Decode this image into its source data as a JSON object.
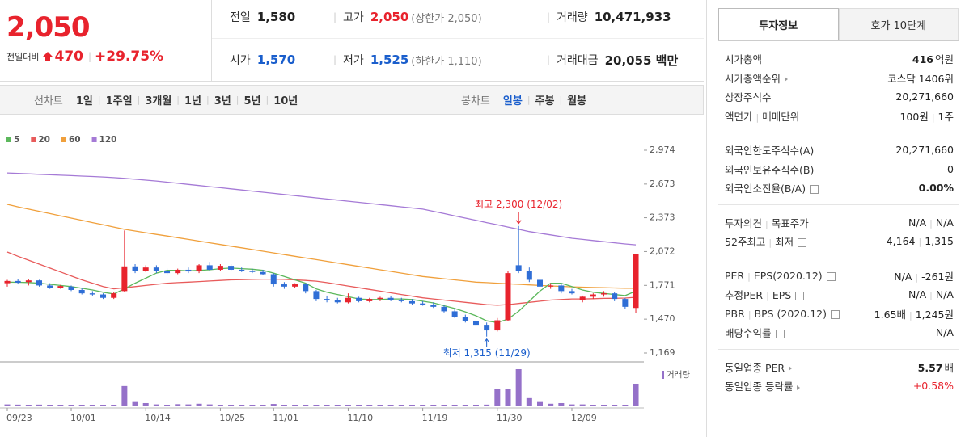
{
  "header": {
    "price": "2,050",
    "change_label": "전일대비",
    "change": "470",
    "change_rate": "+29.75%",
    "stats": [
      [
        {
          "label": "전일",
          "value": "1,580"
        },
        {
          "label": "고가",
          "value": "2,050",
          "note": "(상한가 2,050)",
          "color": "red"
        },
        {
          "label": "거래량",
          "value": "10,471,933"
        }
      ],
      [
        {
          "label": "시가",
          "value": "1,570",
          "color": "blue"
        },
        {
          "label": "저가",
          "value": "1,525",
          "note": "(하한가 1,110)",
          "color": "blue"
        },
        {
          "label": "거래대금",
          "value": "20,055 백만"
        }
      ]
    ]
  },
  "toolbar": {
    "line_label": "선차트",
    "line_periods": [
      "1일",
      "1주일",
      "3개월",
      "1년",
      "3년",
      "5년",
      "10년"
    ],
    "candle_label": "봉차트",
    "candle_periods": [
      "일봉",
      "주봉",
      "월봉"
    ],
    "active": "일봉"
  },
  "info": {
    "tabs": [
      "투자정보",
      "호가 10단계"
    ],
    "active_tab": "투자정보",
    "groups": [
      [
        {
          "labels": [
            "시가총액"
          ],
          "values": [
            "416"
          ],
          "unit": "억원",
          "bold": true
        },
        {
          "labels": [
            "시가총액순위"
          ],
          "icon": "arrow",
          "values": [
            "코스닥 1406위"
          ]
        },
        {
          "labels": [
            "상장주식수"
          ],
          "values": [
            "20,271,660"
          ]
        },
        {
          "labels": [
            "액면가",
            "매매단위"
          ],
          "values": [
            "100원",
            "1주"
          ]
        }
      ],
      [
        {
          "labels": [
            "외국인한도주식수(A)"
          ],
          "values": [
            "20,271,660"
          ]
        },
        {
          "labels": [
            "외국인보유주식수(B)"
          ],
          "values": [
            "0"
          ]
        },
        {
          "labels": [
            "외국인소진율(B/A)"
          ],
          "icon": "help",
          "values": [
            "0.00%"
          ],
          "bold": true
        }
      ],
      [
        {
          "labels": [
            "투자의견",
            "목표주가"
          ],
          "values": [
            "N/A",
            "N/A"
          ]
        },
        {
          "labels": [
            "52주최고",
            "최저"
          ],
          "icon": "help",
          "values": [
            "4,164",
            "1,315"
          ]
        }
      ],
      [
        {
          "labels": [
            "PER",
            "EPS(2020.12)"
          ],
          "icon": "help",
          "values": [
            "N/A",
            "-261원"
          ]
        },
        {
          "labels": [
            "추정PER",
            "EPS"
          ],
          "icon": "help",
          "values": [
            "N/A",
            "N/A"
          ]
        },
        {
          "labels": [
            "PBR",
            "BPS (2020.12)"
          ],
          "icon": "help",
          "values": [
            "1.65배",
            "1,245원"
          ]
        },
        {
          "labels": [
            "배당수익률"
          ],
          "icon": "help",
          "values": [
            "N/A"
          ]
        }
      ],
      [
        {
          "labels": [
            "동일업종 PER"
          ],
          "icon": "arrow",
          "values": [
            "5.57"
          ],
          "unit": "배",
          "bold": true
        },
        {
          "labels": [
            "동일업종 등락률"
          ],
          "icon": "arrow",
          "values": [
            "+0.58%"
          ],
          "color": "red"
        }
      ]
    ]
  },
  "chart_data": {
    "type": "candlestick",
    "categories": [
      "09/23",
      null,
      null,
      null,
      null,
      null,
      "10/01",
      null,
      null,
      null,
      null,
      null,
      null,
      "10/14",
      null,
      null,
      null,
      null,
      null,
      null,
      "10/25",
      null,
      null,
      null,
      null,
      "11/01",
      null,
      null,
      null,
      null,
      null,
      null,
      "11/10",
      null,
      null,
      null,
      null,
      null,
      null,
      "11/19",
      null,
      null,
      null,
      null,
      null,
      null,
      "11/30",
      null,
      null,
      null,
      null,
      null,
      null,
      "12/09",
      null,
      null,
      null,
      null,
      null,
      null
    ],
    "open": [
      1790,
      1810,
      1800,
      1815,
      1770,
      1750,
      1760,
      1730,
      1700,
      1690,
      1660,
      1720,
      1940,
      1900,
      1930,
      1900,
      1880,
      1910,
      1895,
      1950,
      1910,
      1945,
      1910,
      1900,
      1890,
      1870,
      1780,
      1760,
      1780,
      1720,
      1650,
      1640,
      1620,
      1660,
      1630,
      1650,
      1660,
      1640,
      1630,
      1610,
      1600,
      1580,
      1540,
      1490,
      1450,
      1420,
      1370,
      1460,
      1950,
      1900,
      1820,
      1760,
      1770,
      1720,
      1640,
      1670,
      1690,
      1700,
      1650,
      1570
    ],
    "high": [
      1820,
      1830,
      1830,
      1820,
      1790,
      1775,
      1770,
      1745,
      1720,
      1700,
      1710,
      2260,
      1960,
      1950,
      1950,
      1920,
      1920,
      1930,
      1960,
      1980,
      1960,
      1960,
      1930,
      1920,
      1910,
      1880,
      1800,
      1790,
      1790,
      1730,
      1680,
      1660,
      1700,
      1670,
      1660,
      1670,
      1680,
      1660,
      1650,
      1630,
      1620,
      1600,
      1560,
      1510,
      1470,
      1440,
      1480,
      1900,
      2300,
      1930,
      1840,
      1790,
      1790,
      1740,
      1680,
      1700,
      1720,
      1710,
      1660,
      2050
    ],
    "low": [
      1760,
      1780,
      1770,
      1760,
      1740,
      1740,
      1720,
      1690,
      1680,
      1650,
      1650,
      1710,
      1880,
      1890,
      1880,
      1860,
      1870,
      1880,
      1880,
      1900,
      1900,
      1900,
      1890,
      1880,
      1860,
      1760,
      1740,
      1750,
      1700,
      1630,
      1620,
      1610,
      1610,
      1620,
      1620,
      1630,
      1630,
      1620,
      1600,
      1590,
      1570,
      1530,
      1480,
      1440,
      1400,
      1315,
      1360,
      1450,
      1880,
      1800,
      1740,
      1740,
      1700,
      1690,
      1620,
      1650,
      1670,
      1630,
      1560,
      1525
    ],
    "close": [
      1810,
      1795,
      1815,
      1770,
      1750,
      1765,
      1730,
      1700,
      1690,
      1660,
      1700,
      1940,
      1900,
      1930,
      1900,
      1880,
      1910,
      1895,
      1950,
      1910,
      1945,
      1910,
      1900,
      1890,
      1870,
      1780,
      1760,
      1780,
      1720,
      1650,
      1640,
      1620,
      1660,
      1630,
      1650,
      1660,
      1640,
      1630,
      1610,
      1600,
      1580,
      1540,
      1490,
      1450,
      1420,
      1370,
      1460,
      1880,
      1900,
      1820,
      1760,
      1770,
      1720,
      1700,
      1670,
      1690,
      1700,
      1650,
      1580,
      2050
    ],
    "up_color": "#e8232d",
    "down_color": "#2f6ed6",
    "series": [
      {
        "name": "5",
        "color": "#5cb85c",
        "values": [
          1800,
          1798,
          1796,
          1790,
          1780,
          1770,
          1760,
          1745,
          1730,
          1710,
          1695,
          1740,
          1790,
          1835,
          1880,
          1905,
          1905,
          1900,
          1905,
          1910,
          1920,
          1925,
          1920,
          1915,
          1905,
          1880,
          1850,
          1820,
          1790,
          1740,
          1710,
          1690,
          1670,
          1650,
          1645,
          1645,
          1650,
          1650,
          1645,
          1630,
          1615,
          1590,
          1565,
          1535,
          1500,
          1455,
          1440,
          1470,
          1540,
          1630,
          1720,
          1790,
          1790,
          1760,
          1730,
          1710,
          1700,
          1690,
          1680,
          1720
        ]
      },
      {
        "name": "20",
        "color": "#e85b5b",
        "values": [
          2068,
          2030,
          1995,
          1960,
          1925,
          1890,
          1855,
          1820,
          1790,
          1760,
          1740,
          1750,
          1760,
          1770,
          1780,
          1790,
          1795,
          1800,
          1805,
          1810,
          1815,
          1820,
          1822,
          1824,
          1826,
          1826,
          1824,
          1820,
          1815,
          1808,
          1795,
          1780,
          1765,
          1750,
          1735,
          1720,
          1705,
          1690,
          1675,
          1660,
          1650,
          1640,
          1630,
          1620,
          1610,
          1600,
          1595,
          1600,
          1610,
          1620,
          1630,
          1640,
          1645,
          1650,
          1650,
          1652,
          1655,
          1656,
          1658,
          1665
        ]
      },
      {
        "name": "60",
        "color": "#f0a03c",
        "values": [
          2492,
          2470,
          2450,
          2430,
          2410,
          2390,
          2370,
          2350,
          2330,
          2310,
          2290,
          2270,
          2255,
          2240,
          2225,
          2210,
          2195,
          2180,
          2165,
          2150,
          2135,
          2120,
          2105,
          2090,
          2075,
          2060,
          2045,
          2030,
          2015,
          2000,
          1985,
          1970,
          1955,
          1940,
          1925,
          1910,
          1895,
          1880,
          1865,
          1850,
          1840,
          1830,
          1820,
          1810,
          1800,
          1795,
          1790,
          1785,
          1780,
          1775,
          1770,
          1766,
          1762,
          1758,
          1755,
          1752,
          1750,
          1748,
          1746,
          1745
        ]
      },
      {
        "name": "120",
        "color": "#a57ad6",
        "values": [
          2772,
          2768,
          2764,
          2760,
          2756,
          2752,
          2748,
          2744,
          2740,
          2736,
          2730,
          2724,
          2716,
          2708,
          2700,
          2690,
          2680,
          2670,
          2660,
          2650,
          2640,
          2630,
          2620,
          2610,
          2600,
          2590,
          2580,
          2570,
          2560,
          2550,
          2540,
          2530,
          2520,
          2510,
          2500,
          2490,
          2480,
          2470,
          2460,
          2450,
          2430,
          2410,
          2390,
          2370,
          2350,
          2330,
          2310,
          2290,
          2270,
          2250,
          2235,
          2220,
          2205,
          2190,
          2180,
          2170,
          2160,
          2150,
          2140,
          2132
        ]
      }
    ],
    "ylim": [
      1169,
      2974
    ],
    "yticks": [
      {
        "value": 1169,
        "label": "1,169"
      },
      {
        "value": 1470,
        "label": "1,470"
      },
      {
        "value": 1771,
        "label": "1,771"
      },
      {
        "value": 2072,
        "label": "2,072"
      },
      {
        "value": 2373,
        "label": "2,373"
      },
      {
        "value": 2673,
        "label": "2,673"
      },
      {
        "value": 2974,
        "label": "2,974"
      }
    ],
    "volume": {
      "name": "거래량",
      "color": "#9571c9",
      "values": [
        900000,
        800000,
        700000,
        800000,
        600000,
        500000,
        600000,
        500000,
        400000,
        500000,
        700000,
        9400000,
        2000000,
        1500000,
        900000,
        700000,
        1000000,
        900000,
        1200000,
        900000,
        700000,
        600000,
        500000,
        500000,
        400000,
        1100000,
        400000,
        300000,
        300000,
        400000,
        300000,
        300000,
        300000,
        300000,
        300000,
        300000,
        300000,
        300000,
        300000,
        300000,
        300000,
        300000,
        400000,
        400000,
        500000,
        800000,
        8000000,
        8000000,
        17200000,
        3800000,
        2000000,
        1200000,
        1500000,
        900000,
        900000,
        700000,
        600000,
        700000,
        500000,
        10471933
      ]
    },
    "annotations": [
      "최고 2,300 (12/02)",
      "최저 1,315 (11/29)"
    ]
  }
}
